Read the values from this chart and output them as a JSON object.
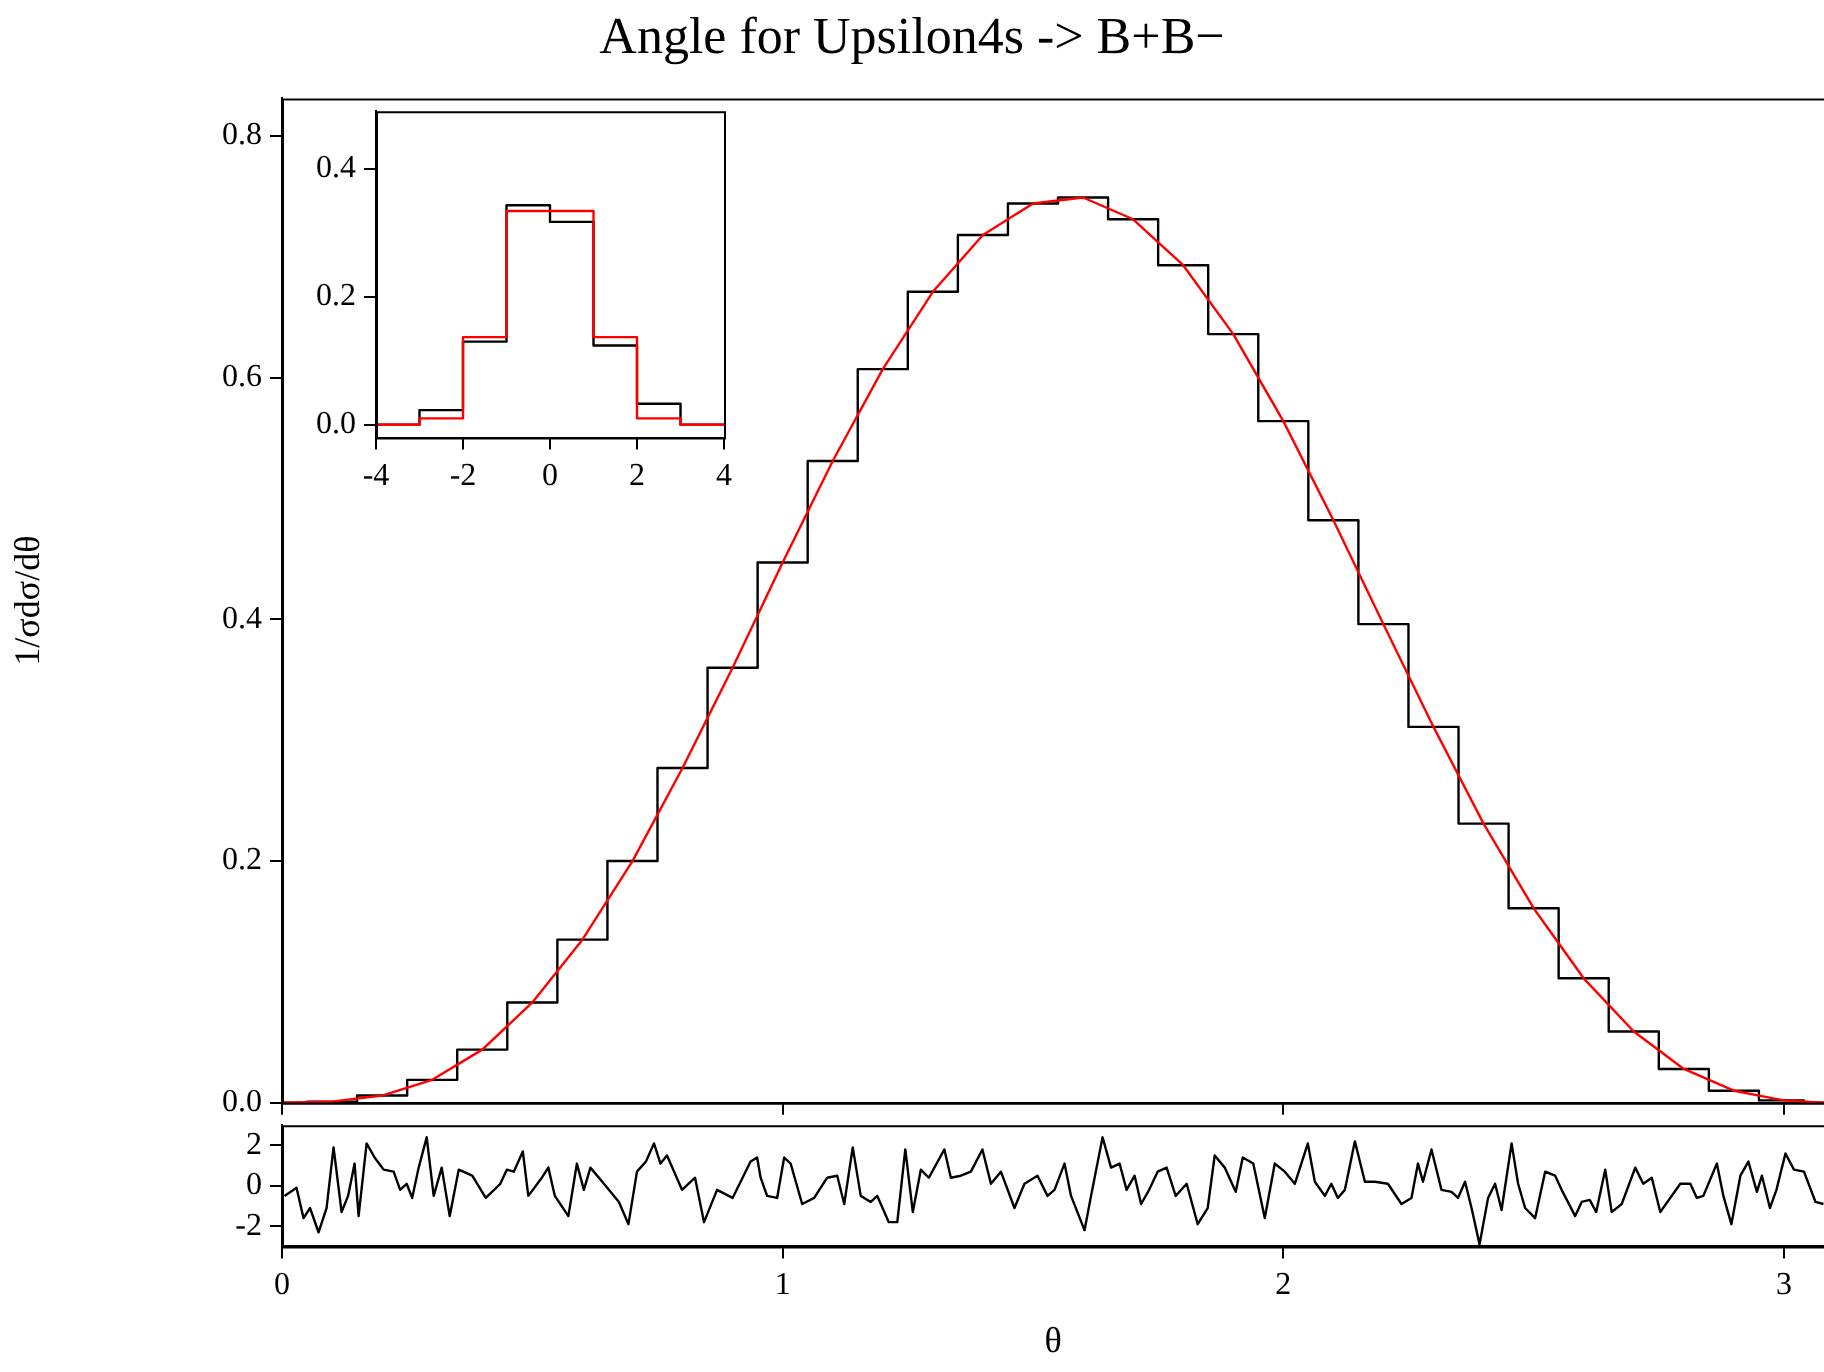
{
  "chart_data": [
    {
      "type": "line",
      "title": "Angle for Upsilon4s -> B+B−",
      "ylabel": "1/σdσ/dθ",
      "tick_labels": "y",
      "xlim": [
        0,
        3.08
      ],
      "xticks": [
        0,
        1,
        2,
        3
      ],
      "ylim": [
        0,
        0.831
      ],
      "yticks": [
        {
          "value": 0,
          "label": "0.0"
        },
        {
          "value": 0.2,
          "label": "0.2"
        },
        {
          "value": 0.4,
          "label": "0.4"
        },
        {
          "value": 0.6,
          "label": "0.6"
        },
        {
          "value": 0.8,
          "label": "0.8"
        }
      ],
      "x": [
        0,
        0.1,
        0.2,
        0.3,
        0.4,
        0.5,
        0.6,
        0.7,
        0.8,
        0.9,
        1.0,
        1.1,
        1.2,
        1.3,
        1.4,
        1.5,
        1.6,
        1.7,
        1.8,
        1.9,
        2.0,
        2.1,
        2.2,
        2.3,
        2.4,
        2.5,
        2.6,
        2.7,
        2.8,
        2.9,
        3.0,
        3.08
      ],
      "series": [
        {
          "type": "step",
          "color": "#000000",
          "values": [
            0,
            0.001,
            0.006,
            0.019,
            0.044,
            0.083,
            0.135,
            0.2,
            0.277,
            0.36,
            0.447,
            0.531,
            0.607,
            0.671,
            0.718,
            0.744,
            0.749,
            0.731,
            0.693,
            0.636,
            0.564,
            0.482,
            0.396,
            0.311,
            0.231,
            0.161,
            0.103,
            0.059,
            0.028,
            0.01,
            0.002,
            0
          ]
        },
        {
          "type": "line",
          "color": "#ff0000",
          "values": [
            0,
            0.001,
            0.006,
            0.019,
            0.044,
            0.083,
            0.135,
            0.2,
            0.277,
            0.36,
            0.447,
            0.531,
            0.607,
            0.671,
            0.718,
            0.744,
            0.749,
            0.731,
            0.693,
            0.636,
            0.564,
            0.482,
            0.396,
            0.311,
            0.231,
            0.161,
            0.103,
            0.059,
            0.028,
            0.01,
            0.002,
            0
          ]
        }
      ]
    },
    {
      "type": "histogram",
      "xlim": [
        -4,
        4
      ],
      "xticks": [
        -4,
        -2,
        0,
        2,
        4
      ],
      "ylim": [
        -0.02,
        0.49
      ],
      "yticks": [
        {
          "value": 0,
          "label": "0.0"
        },
        {
          "value": 0.2,
          "label": "0.2"
        },
        {
          "value": 0.4,
          "label": "0.4"
        }
      ],
      "bins": [
        -4,
        -3,
        -2,
        -1,
        0,
        1,
        2,
        3,
        4
      ],
      "series": [
        {
          "color": "#000000",
          "values": [
            0,
            0.023,
            0.13,
            0.343,
            0.317,
            0.124,
            0.033,
            0
          ]
        },
        {
          "color": "#ff0000",
          "values": [
            0,
            0.01,
            0.137,
            0.334,
            0.334,
            0.137,
            0.01,
            0
          ]
        }
      ]
    },
    {
      "type": "line",
      "xlabel": "θ",
      "color": "#000000",
      "xlim": [
        0,
        3.08
      ],
      "xticks": [
        0,
        1,
        2,
        3
      ],
      "ylim": [
        -3,
        3
      ],
      "yticks": [
        -2,
        0,
        2
      ],
      "x": [
        0.005,
        0.029,
        0.043,
        0.056,
        0.073,
        0.089,
        0.103,
        0.119,
        0.132,
        0.145,
        0.153,
        0.169,
        0.185,
        0.203,
        0.223,
        0.236,
        0.249,
        0.26,
        0.273,
        0.289,
        0.303,
        0.319,
        0.335,
        0.353,
        0.38,
        0.407,
        0.436,
        0.449,
        0.463,
        0.481,
        0.492,
        0.519,
        0.532,
        0.545,
        0.572,
        0.589,
        0.603,
        0.616,
        0.643,
        0.673,
        0.692,
        0.709,
        0.727,
        0.743,
        0.756,
        0.769,
        0.799,
        0.825,
        0.843,
        0.869,
        0.9,
        0.936,
        0.949,
        0.956,
        0.969,
        0.989,
        1.003,
        1.016,
        1.039,
        1.063,
        1.089,
        1.109,
        1.123,
        1.14,
        1.156,
        1.176,
        1.189,
        1.212,
        1.229,
        1.245,
        1.26,
        1.276,
        1.292,
        1.323,
        1.336,
        1.356,
        1.376,
        1.399,
        1.416,
        1.436,
        1.463,
        1.483,
        1.509,
        1.529,
        1.543,
        1.563,
        1.576,
        1.603,
        1.616,
        1.639,
        1.656,
        1.673,
        1.687,
        1.703,
        1.716,
        1.732,
        1.749,
        1.767,
        1.785,
        1.807,
        1.829,
        1.849,
        1.863,
        1.883,
        1.905,
        1.919,
        1.94,
        1.963,
        1.983,
        2.003,
        2.023,
        2.049,
        2.063,
        2.083,
        2.096,
        2.109,
        2.123,
        2.143,
        2.163,
        2.183,
        2.209,
        2.236,
        2.256,
        2.269,
        2.279,
        2.296,
        2.316,
        2.336,
        2.349,
        2.363,
        2.376,
        2.392,
        2.409,
        2.423,
        2.436,
        2.456,
        2.469,
        2.483,
        2.503,
        2.523,
        2.543,
        2.556,
        2.583,
        2.596,
        2.612,
        2.625,
        2.643,
        2.656,
        2.676,
        2.703,
        2.719,
        2.736,
        2.753,
        2.773,
        2.793,
        2.813,
        2.826,
        2.839,
        2.866,
        2.879,
        2.895,
        2.913,
        2.929,
        2.946,
        2.956,
        2.972,
        2.985,
        3.003,
        3.02,
        3.04,
        3.063,
        3.079
      ],
      "values": [
        -0.5,
        -0.1,
        -1.6,
        -1.1,
        -2.3,
        -1.1,
        1.9,
        -1.3,
        -0.5,
        1.1,
        -1.5,
        2.1,
        1.4,
        0.8,
        0.7,
        -0.2,
        0.1,
        -0.6,
        0.9,
        2.4,
        -0.5,
        0.9,
        -1.5,
        0.8,
        0.5,
        -0.6,
        0.1,
        0.8,
        0.7,
        1.7,
        -0.5,
        0.4,
        0.9,
        -0.5,
        -1.5,
        1.1,
        -0.2,
        0.9,
        0.1,
        -0.8,
        -1.9,
        0.7,
        1.2,
        2.1,
        1.1,
        1.5,
        -0.2,
        0.4,
        -1.8,
        -0.2,
        -0.6,
        1.2,
        1.4,
        0.4,
        -0.5,
        -0.6,
        1.4,
        1.1,
        -0.9,
        -0.6,
        0.4,
        0.5,
        -0.9,
        1.9,
        -0.5,
        -0.8,
        -0.5,
        -1.8,
        -1.8,
        1.8,
        -1.3,
        0.8,
        0.4,
        1.8,
        0.4,
        0.5,
        0.7,
        1.8,
        0.1,
        0.7,
        -1.1,
        0.1,
        0.5,
        -0.5,
        -0.2,
        1.1,
        -0.5,
        -2.2,
        -0.5,
        2.4,
        0.9,
        1.1,
        -0.2,
        0.5,
        -0.9,
        -0.2,
        0.7,
        0.9,
        -0.5,
        0.1,
        -1.9,
        -1.1,
        1.5,
        0.9,
        -0.3,
        1.4,
        1.1,
        -1.6,
        1.1,
        0.7,
        0.1,
        2.1,
        0.2,
        -0.5,
        0.1,
        -0.6,
        -0.2,
        2.2,
        0.2,
        0.2,
        0.1,
        -0.9,
        -0.6,
        1.1,
        0.2,
        1.8,
        -0.2,
        -0.3,
        -0.6,
        0.2,
        -1.1,
        -2.9,
        -0.6,
        0.1,
        -1.2,
        2.1,
        0.1,
        -1.1,
        -1.6,
        0.7,
        0.5,
        -0.2,
        -1.5,
        -0.8,
        -0.7,
        -1.3,
        0.8,
        -1.3,
        -0.9,
        0.9,
        0.1,
        0.4,
        -1.3,
        -0.6,
        0.1,
        0.1,
        -0.6,
        -0.5,
        1.1,
        -0.5,
        -1.9,
        0.5,
        1.2,
        -0.3,
        0.5,
        -1.1,
        -0.2,
        1.6,
        0.8,
        0.7,
        -0.8,
        -0.9
      ]
    }
  ]
}
